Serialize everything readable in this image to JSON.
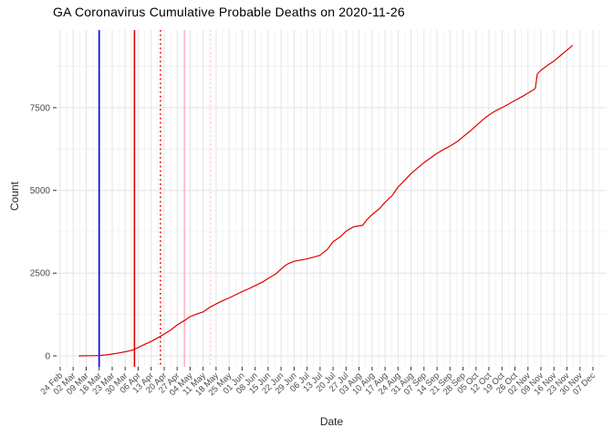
{
  "chart_data": {
    "type": "line",
    "title": "GA Coronavirus Cumulative Probable Deaths on 2020-11-26",
    "xlabel": "Date",
    "ylabel": "Count",
    "as_of_date": "2020-11-26",
    "background_color": "#FFFFFF",
    "grid": true,
    "grid_major_color": "#E3E3E3",
    "grid_minor_color": "#F1F1F1",
    "tick_mark_color": "#333333",
    "axis_text_color": "#4D4D4D",
    "legend": "none",
    "x_start_date": "2020-02-24",
    "x_tick_interval_days": 7,
    "x_tick_labels": [
      "24 Feb",
      "02 Mar",
      "09 Mar",
      "16 Mar",
      "23 Mar",
      "30 Mar",
      "06 Apr",
      "13 Apr",
      "20 Apr",
      "27 Apr",
      "04 May",
      "11 May",
      "18 May",
      "25 May",
      "01 Jun",
      "08 Jun",
      "15 Jun",
      "22 Jun",
      "29 Jun",
      "06 Jul",
      "13 Jul",
      "20 Jul",
      "27 Jul",
      "03 Aug",
      "10 Aug",
      "17 Aug",
      "24 Aug",
      "31 Aug",
      "07 Sep",
      "14 Sep",
      "21 Sep",
      "28 Sep",
      "05 Oct",
      "12 Oct",
      "19 Oct",
      "26 Oct",
      "02 Nov",
      "09 Nov",
      "16 Nov",
      "23 Nov",
      "30 Nov",
      "07 Dec"
    ],
    "y_ticks": [
      0,
      2500,
      5000,
      7500
    ],
    "y_minor": [
      1250,
      3750,
      6250,
      8750
    ],
    "ylim": [
      0,
      9840
    ],
    "vlines": [
      {
        "date": "2020-03-16",
        "day": 21,
        "color": "#0000EE",
        "style": "solid"
      },
      {
        "date": "2020-04-03",
        "day": 40,
        "color": "#E00000",
        "style": "solid"
      },
      {
        "date": "2020-04-17",
        "day": 54,
        "color": "#E00000",
        "style": "dotted"
      },
      {
        "date": "2020-04-30",
        "day": 67,
        "color": "#FFB6C1",
        "style": "solid"
      },
      {
        "date": "2020-05-14",
        "day": 81,
        "color": "#FFCCD5",
        "style": "dotted"
      }
    ],
    "series": [
      {
        "name": "cumulative probable deaths",
        "color": "#E00000",
        "points_format": "[days_since_2020-02-24, count]",
        "points": [
          [
            10,
            0
          ],
          [
            14,
            3
          ],
          [
            18,
            6
          ],
          [
            21,
            12
          ],
          [
            25,
            32
          ],
          [
            28,
            55
          ],
          [
            32,
            90
          ],
          [
            35,
            125
          ],
          [
            39,
            175
          ],
          [
            42,
            255
          ],
          [
            46,
            360
          ],
          [
            49,
            435
          ],
          [
            53,
            560
          ],
          [
            56,
            660
          ],
          [
            60,
            800
          ],
          [
            63,
            935
          ],
          [
            67,
            1070
          ],
          [
            70,
            1185
          ],
          [
            74,
            1275
          ],
          [
            77,
            1330
          ],
          [
            81,
            1480
          ],
          [
            84,
            1570
          ],
          [
            88,
            1680
          ],
          [
            91,
            1750
          ],
          [
            95,
            1860
          ],
          [
            98,
            1940
          ],
          [
            102,
            2040
          ],
          [
            105,
            2120
          ],
          [
            109,
            2230
          ],
          [
            112,
            2340
          ],
          [
            116,
            2470
          ],
          [
            119,
            2620
          ],
          [
            121,
            2720
          ],
          [
            123,
            2790
          ],
          [
            126,
            2860
          ],
          [
            130,
            2900
          ],
          [
            133,
            2930
          ],
          [
            137,
            2990
          ],
          [
            140,
            3040
          ],
          [
            144,
            3220
          ],
          [
            147,
            3450
          ],
          [
            151,
            3600
          ],
          [
            154,
            3770
          ],
          [
            158,
            3900
          ],
          [
            161,
            3930
          ],
          [
            163,
            3945
          ],
          [
            165,
            4100
          ],
          [
            168,
            4270
          ],
          [
            172,
            4450
          ],
          [
            175,
            4640
          ],
          [
            179,
            4850
          ],
          [
            182,
            5100
          ],
          [
            186,
            5330
          ],
          [
            189,
            5510
          ],
          [
            193,
            5700
          ],
          [
            196,
            5840
          ],
          [
            200,
            6000
          ],
          [
            203,
            6120
          ],
          [
            207,
            6250
          ],
          [
            210,
            6340
          ],
          [
            214,
            6480
          ],
          [
            217,
            6620
          ],
          [
            221,
            6800
          ],
          [
            224,
            6950
          ],
          [
            228,
            7150
          ],
          [
            231,
            7280
          ],
          [
            235,
            7420
          ],
          [
            238,
            7500
          ],
          [
            242,
            7620
          ],
          [
            245,
            7720
          ],
          [
            249,
            7840
          ],
          [
            252,
            7940
          ],
          [
            255,
            8040
          ],
          [
            256,
            8090
          ],
          [
            257,
            8520
          ],
          [
            259,
            8630
          ],
          [
            263,
            8800
          ],
          [
            266,
            8910
          ],
          [
            270,
            9100
          ],
          [
            273,
            9240
          ],
          [
            275,
            9330
          ],
          [
            276,
            9390
          ]
        ]
      }
    ]
  }
}
